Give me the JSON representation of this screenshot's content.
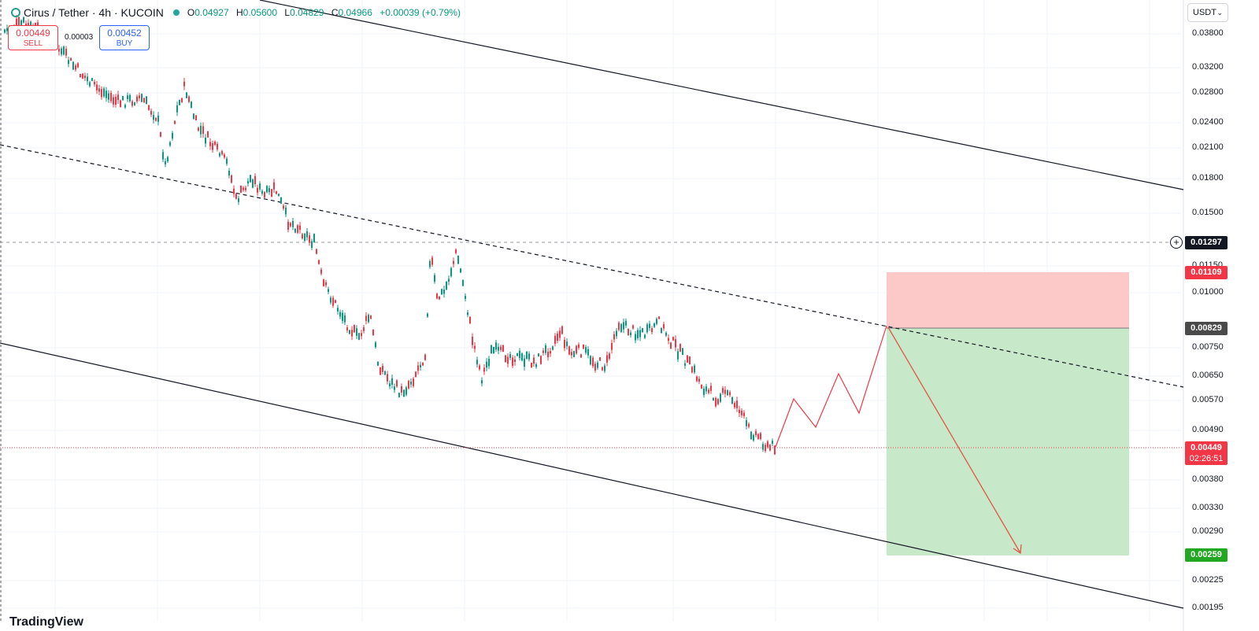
{
  "header": {
    "symbol": "Cirus / Tether · 4h · KUCOIN",
    "open_label": "O",
    "open": "0.04927",
    "high_label": "H",
    "high": "0.05600",
    "low_label": "L",
    "low": "0.04829",
    "close_label": "C",
    "close": "0.04966",
    "change": "+0.00039 (+0.79%)"
  },
  "trade": {
    "sell_price": "0.00449",
    "sell_label": "SELL",
    "spread": "0.00003",
    "buy_price": "0.00452",
    "buy_label": "BUY"
  },
  "currency": {
    "label": "USDT"
  },
  "axis": {
    "ticks": [
      "0.03800",
      "0.03200",
      "0.02800",
      "0.02400",
      "0.02100",
      "0.01800",
      "0.01500",
      "0.01150",
      "0.01000",
      "0.00750",
      "0.00650",
      "0.00570",
      "0.00490",
      "0.00380",
      "0.00330",
      "0.00290",
      "0.00225",
      "0.00195"
    ]
  },
  "tags": {
    "crosshair": "0.01297",
    "stop": "0.01109",
    "entry": "0.00829",
    "last": "0.00449",
    "countdown": "02:26:51",
    "target": "0.00259"
  },
  "colors": {
    "up": "#089981",
    "down": "#f23645",
    "stop_zone": "#fcc8c8",
    "target_zone": "#c8e9c9",
    "entry_tag": "#4a4a4a",
    "stop_tag": "#f23645",
    "target_tag": "#22a722",
    "crosshair_tag": "#131722"
  },
  "watermark": "TradingView"
}
